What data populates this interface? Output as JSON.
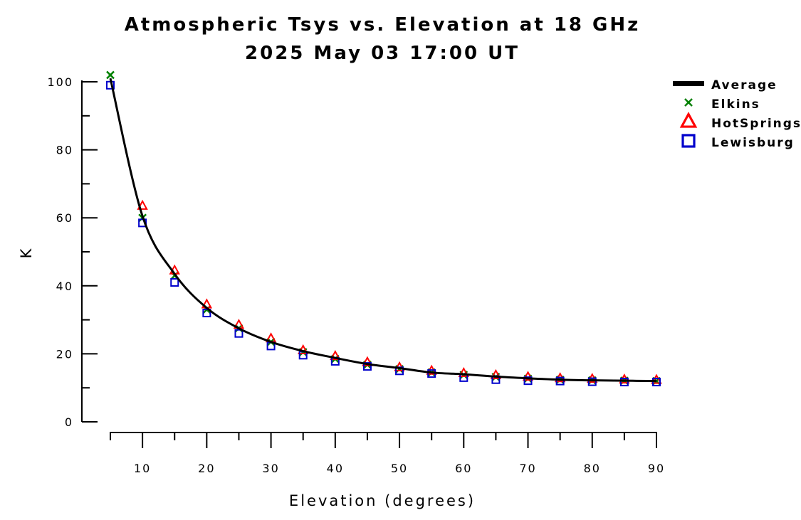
{
  "chart_data": {
    "type": "line",
    "title": "Atmospheric Tsys vs. Elevation at 18 GHz",
    "subtitle": "2025 May 03 17:00 UT",
    "xlabel": "Elevation (degrees)",
    "ylabel": "K",
    "xlim": [
      5,
      90
    ],
    "ylim": [
      0,
      100
    ],
    "x_ticks": [
      10,
      20,
      30,
      40,
      50,
      60,
      70,
      80,
      90
    ],
    "y_ticks": [
      0,
      20,
      40,
      60,
      80,
      100
    ],
    "grid": false,
    "legend_position": "top-right",
    "x": [
      5,
      10,
      15,
      20,
      25,
      30,
      35,
      40,
      45,
      50,
      55,
      60,
      65,
      70,
      75,
      80,
      85,
      90
    ],
    "series": [
      {
        "name": "Average",
        "marker": "line",
        "color": "#000000",
        "values": [
          101,
          60.5,
          43.5,
          33.5,
          27.5,
          23.5,
          20.8,
          18.8,
          17.0,
          15.8,
          14.5,
          14.0,
          13.3,
          12.8,
          12.4,
          12.2,
          12.1,
          12.0
        ]
      },
      {
        "name": "Elkins",
        "marker": "x",
        "color": "#008000",
        "values": [
          102,
          60,
          43,
          33,
          27.5,
          23.5,
          20.5,
          18.5,
          16.8,
          15.5,
          14.5,
          13.8,
          13.2,
          12.7,
          12.4,
          12.2,
          12.1,
          12.0
        ]
      },
      {
        "name": "HotSprings",
        "marker": "triangle",
        "color": "#ff0000",
        "values": [
          null,
          63.5,
          44.5,
          34.5,
          28.5,
          24.5,
          21.0,
          19.3,
          17.5,
          16.0,
          15.0,
          14.3,
          13.7,
          13.2,
          12.8,
          12.6,
          12.4,
          12.3
        ]
      },
      {
        "name": "Lewisburg",
        "marker": "square",
        "color": "#0000cc",
        "values": [
          99,
          58.5,
          41,
          32,
          26,
          22.3,
          19.6,
          17.8,
          16.3,
          15.0,
          14.2,
          13.0,
          12.4,
          12.1,
          12.0,
          11.8,
          11.7,
          11.7
        ]
      }
    ]
  }
}
